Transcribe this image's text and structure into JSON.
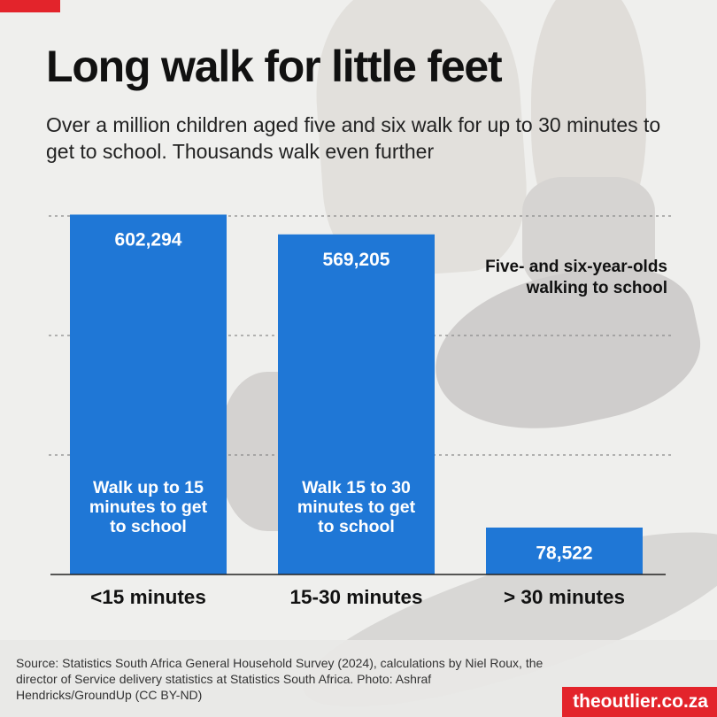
{
  "header": {
    "title": "Long walk for little feet",
    "subtitle": "Over a million children aged five and six walk for up to 30 minutes to get to school. Thousands walk even further"
  },
  "chart_data": {
    "type": "bar",
    "categories": [
      "<15 minutes",
      "15-30 minutes",
      "> 30 minutes"
    ],
    "values": [
      602294,
      569205,
      78522
    ],
    "value_labels": [
      "602,294",
      "569,205",
      "78,522"
    ],
    "bar_annotations": [
      [
        "Walk up to 15",
        "minutes to get",
        "to school"
      ],
      [
        "Walk 15 to 30",
        "minutes to get",
        "to school"
      ],
      []
    ],
    "legend_text": [
      "Five- and six-year-olds",
      "walking to school"
    ],
    "ylim": [
      0,
      600000
    ],
    "gridlines": [
      200000,
      400000,
      600000
    ],
    "bar_color": "#1f77d6"
  },
  "footer": {
    "source": "Source: Statistics South Africa General Household Survey (2024), calculations by Niel Roux, the director of Service delivery statistics at Statistics South Africa. Photo: Ashraf Hendricks/GroundUp (CC BY-ND)",
    "brand": "theoutlier.co.za"
  },
  "colors": {
    "accent": "#e3242b",
    "bar": "#1f77d6"
  }
}
